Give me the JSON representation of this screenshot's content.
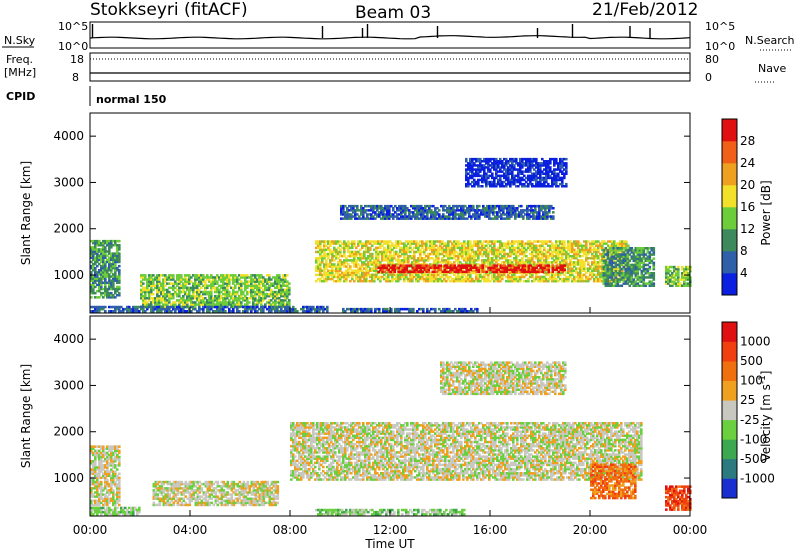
{
  "header": {
    "station": "Stokkseyri (fitACF)",
    "beam": "Beam 03",
    "date": "21/Feb/2012"
  },
  "strip_panels": {
    "nsky_label": "N.Sky",
    "nsearch_label": "N.Search",
    "noise_ticks_left": [
      "10^5",
      "10^0"
    ],
    "noise_ticks_right": [
      "10^5",
      "10^0"
    ],
    "freq_label_line1": "Freq.",
    "freq_label_line2": "[MHz]",
    "freq_ticks": [
      "18",
      "8"
    ],
    "nave_label": "Nave",
    "nave_ticks": [
      "80",
      "0"
    ],
    "cpid_label": "CPID",
    "cpid_value": "normal 150"
  },
  "chart_data": [
    {
      "type": "heatmap",
      "name": "power",
      "ylabel": "Slant Range [km]",
      "xlabel": "Time UT",
      "ylim": [
        180,
        4500
      ],
      "y_ticks": [
        "1000",
        "2000",
        "3000",
        "4000"
      ],
      "x_ticks": [
        "00:00",
        "04:00",
        "08:00",
        "12:00",
        "16:00",
        "20:00",
        "00:00"
      ],
      "colorbar": {
        "label": "Power [dB]",
        "ticks": [
          "4",
          "8",
          "12",
          "16",
          "20",
          "24",
          "28"
        ],
        "colors": [
          "#0b1fe0",
          "#2f5fa8",
          "#3c8a5c",
          "#6ccc3a",
          "#f2e02a",
          "#f0a020",
          "#f06018",
          "#e01010"
        ]
      },
      "regions": [
        {
          "t0": 9.0,
          "t1": 21.5,
          "r0": 850,
          "r1": 1750,
          "level": 4
        },
        {
          "t0": 11.5,
          "t1": 19.0,
          "r0": 1050,
          "r1": 1200,
          "level": 7
        },
        {
          "t0": 0.0,
          "t1": 1.2,
          "r0": 500,
          "r1": 1750,
          "level": 2
        },
        {
          "t0": 2.0,
          "t1": 8.0,
          "r0": 300,
          "r1": 1000,
          "level": 3
        },
        {
          "t0": 0.0,
          "t1": 9.5,
          "r0": 200,
          "r1": 320,
          "level": 1
        },
        {
          "t0": 10.0,
          "t1": 15.5,
          "r0": 200,
          "r1": 280,
          "level": 1
        },
        {
          "t0": 10.0,
          "t1": 18.5,
          "r0": 2200,
          "r1": 2500,
          "level": 1
        },
        {
          "t0": 15.0,
          "t1": 19.0,
          "r0": 2900,
          "r1": 3500,
          "level": 0
        },
        {
          "t0": 20.5,
          "t1": 22.5,
          "r0": 750,
          "r1": 1600,
          "level": 2
        },
        {
          "t0": 23.0,
          "t1": 24.0,
          "r0": 750,
          "r1": 1200,
          "level": 3
        }
      ]
    },
    {
      "type": "heatmap",
      "name": "velocity",
      "ylabel": "Slant Range [km]",
      "xlabel": "Time UT",
      "ylim": [
        180,
        4500
      ],
      "y_ticks": [
        "1000",
        "2000",
        "3000",
        "4000"
      ],
      "x_ticks": [
        "00:00",
        "04:00",
        "08:00",
        "12:00",
        "16:00",
        "20:00",
        "00:00"
      ],
      "colorbar": {
        "label": "Velocity [m s^-1]",
        "ticks": [
          "1000",
          "500",
          "100",
          "25",
          "-25",
          "-100",
          "-500",
          "-1000"
        ],
        "colors": [
          "#1a2fd0",
          "#2a7a80",
          "#3ca850",
          "#6ad040",
          "#c8c8c0",
          "#f0a020",
          "#f07010",
          "#f04010",
          "#e01010"
        ]
      },
      "regions": [
        {
          "t0": 8.0,
          "t1": 22.0,
          "r0": 950,
          "r1": 2200,
          "level": 4
        },
        {
          "t0": 0.0,
          "t1": 1.2,
          "r0": 400,
          "r1": 1700,
          "level": 4
        },
        {
          "t0": 2.5,
          "t1": 7.5,
          "r0": 400,
          "r1": 900,
          "level": 4
        },
        {
          "t0": 0.0,
          "t1": 2.0,
          "r0": 200,
          "r1": 350,
          "level": 3
        },
        {
          "t0": 9.0,
          "t1": 15.0,
          "r0": 200,
          "r1": 300,
          "level": 3
        },
        {
          "t0": 20.0,
          "t1": 21.8,
          "r0": 550,
          "r1": 1300,
          "level": 6
        },
        {
          "t0": 23.0,
          "t1": 24.0,
          "r0": 300,
          "r1": 800,
          "level": 7
        },
        {
          "t0": 14.0,
          "t1": 19.0,
          "r0": 2800,
          "r1": 3500,
          "level": 4
        }
      ]
    }
  ]
}
